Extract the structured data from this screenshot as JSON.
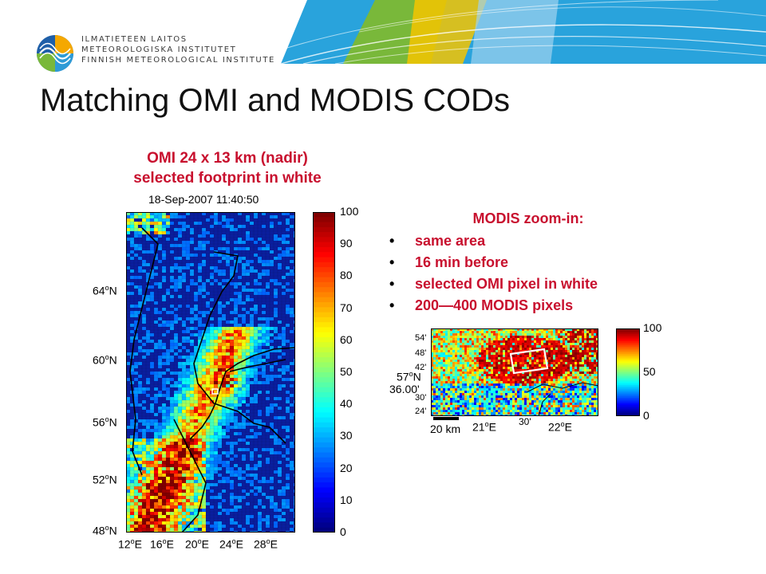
{
  "header": {
    "org_lines": [
      "ILMATIETEEN LAITOS",
      "METEOROLOGISKA INSTITUTET",
      "FINNISH METEOROLOGICAL INSTITUTE"
    ]
  },
  "slide": {
    "title": "Matching OMI and MODIS CODs"
  },
  "omi": {
    "caption_line1": "OMI 24 x 13 km (nadir)",
    "caption_line2": "selected footprint in white",
    "timestamp": "18-Sep-2007 11:40:50",
    "lat_labels": [
      "64",
      "60",
      "56",
      "52",
      "48"
    ],
    "lat_suffix": "N",
    "lon_labels": [
      "12",
      "16",
      "20",
      "24",
      "28"
    ],
    "lon_suffix": "E",
    "colorbar_ticks": [
      "100",
      "90",
      "80",
      "70",
      "60",
      "50",
      "40",
      "30",
      "20",
      "10",
      "0"
    ],
    "colorbar_range": [
      0,
      100
    ],
    "selected_footprint_color": "#ffffff"
  },
  "modis": {
    "heading": "MODIS zoom-in:",
    "bullets": [
      "same area",
      "16 min before",
      "selected OMI pixel in white",
      "200—400 MODIS pixels"
    ],
    "lat_minute_labels": [
      "54'",
      "48'",
      "42'",
      "30'",
      "24'"
    ],
    "lat_main": "57",
    "lat_main_suffix": "N",
    "lat_extra": "36.00'",
    "lon_labels": [
      "21",
      "30'",
      "22"
    ],
    "lon_suffix": "E",
    "scale_label": "20 km",
    "colorbar_ticks": [
      "100",
      "50",
      "0"
    ],
    "colorbar_range": [
      0,
      100
    ]
  },
  "colors": {
    "accent_red": "#c8102e",
    "banner_blue": "#29a3dc",
    "banner_green": "#79b83a",
    "banner_yellow": "#f5c400"
  }
}
